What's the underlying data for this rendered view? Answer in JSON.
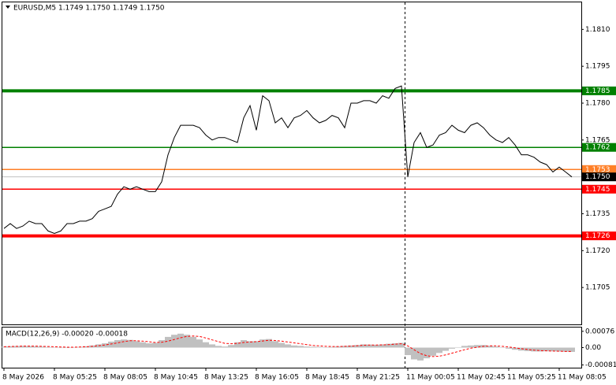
{
  "chart_data": [
    {
      "type": "line",
      "title": "EURUSD,M5  1.1749 1.1750 1.1749 1.1750",
      "categories": [
        "8 May 2026",
        null,
        null,
        null,
        null,
        null,
        null,
        null,
        "8 May 05:25",
        null,
        null,
        null,
        null,
        null,
        null,
        null,
        "8 May 08:05",
        null,
        null,
        null,
        null,
        null,
        null,
        null,
        "8 May 10:45",
        null,
        null,
        null,
        null,
        null,
        null,
        null,
        "8 May 13:25",
        null,
        null,
        null,
        null,
        null,
        null,
        null,
        "8 May 16:05",
        null,
        null,
        null,
        null,
        null,
        null,
        null,
        "8 May 18:45",
        null,
        null,
        null,
        null,
        null,
        null,
        null,
        "8 May 21:25",
        null,
        null,
        null,
        null,
        null,
        null,
        null,
        "11 May 00:05",
        null,
        null,
        null,
        null,
        null,
        null,
        null,
        "11 May 02:45",
        null,
        null,
        null,
        null,
        null,
        null,
        null,
        "11 May 05:25",
        null,
        null,
        null,
        null,
        null,
        null,
        null,
        "11 May 08:05",
        null,
        null
      ],
      "values": [
        1.1729,
        1.1731,
        1.1729,
        1.173,
        1.1732,
        1.1731,
        1.1731,
        1.1728,
        1.1727,
        1.1728,
        1.1731,
        1.1731,
        1.1732,
        1.1732,
        1.1733,
        1.1736,
        1.1737,
        1.1738,
        1.1743,
        1.1746,
        1.1745,
        1.1746,
        1.1745,
        1.1744,
        1.1744,
        1.1748,
        1.1759,
        1.1766,
        1.1771,
        1.1771,
        1.1771,
        1.177,
        1.1767,
        1.1765,
        1.1766,
        1.1766,
        1.1765,
        1.1764,
        1.1774,
        1.1779,
        1.1769,
        1.1783,
        1.1781,
        1.1772,
        1.1774,
        1.177,
        1.1774,
        1.1775,
        1.1777,
        1.1774,
        1.1772,
        1.1773,
        1.1775,
        1.1774,
        1.177,
        1.178,
        1.178,
        1.1781,
        1.1781,
        1.178,
        1.1783,
        1.1782,
        1.1786,
        1.1787,
        1.175,
        1.1764,
        1.1768,
        1.1762,
        1.1763,
        1.1767,
        1.1768,
        1.1771,
        1.1769,
        1.1768,
        1.1771,
        1.1772,
        1.177,
        1.1767,
        1.1765,
        1.1764,
        1.1766,
        1.1763,
        1.1759,
        1.1759,
        1.1758,
        1.1756,
        1.1755,
        1.1752,
        1.1754,
        1.1752,
        1.175
      ],
      "color": "#000000",
      "ylim": [
        1.169,
        1.1821
      ],
      "yticks": [
        {
          "value": 1.181,
          "label": "1.1810"
        },
        1.1795,
        {
          "value": 1.178,
          "label": "1.1780"
        },
        1.1765,
        1.1735,
        {
          "value": 1.172,
          "label": "1.1720"
        },
        1.1705
      ],
      "levels": [
        {
          "value": 1.1785,
          "color": "#008000",
          "style": "thick"
        },
        {
          "value": 1.1762,
          "color": "#008000",
          "style": "thin"
        },
        {
          "value": 1.1753,
          "color": "#ff7f27",
          "style": "thin"
        },
        {
          "value": 1.1745,
          "color": "#ff0000",
          "style": "thin"
        },
        {
          "value": 1.1726,
          "color": "#ff0000",
          "style": "thick"
        }
      ],
      "last": {
        "value": 1.175,
        "label": "1.1750"
      }
    },
    {
      "type": "bar",
      "title": "MACD(12,26,9) -0.00020 -0.00018",
      "ylim": [
        -0.0009,
        0.0009
      ],
      "yticks": [
        0.00076,
        {
          "value": 0,
          "label": "0.00"
        },
        -0.00081
      ],
      "series": [
        {
          "color": "#c0c0c0",
          "style": "histogram",
          "values": [
            5e-05,
            6e-05,
            7e-05,
            8e-05,
            7e-05,
            6e-05,
            5e-05,
            3e-05,
            0,
            -2e-05,
            -1e-05,
            1e-05,
            3e-05,
            6e-05,
            0.0001,
            0.00015,
            0.0002,
            0.00028,
            0.00035,
            0.00038,
            0.00036,
            0.0003,
            0.00025,
            0.0002,
            0.00022,
            0.00035,
            0.0005,
            0.0006,
            0.00065,
            0.0006,
            0.0005,
            0.00038,
            0.00025,
            0.00015,
            8e-05,
            5e-05,
            0.00012,
            0.00025,
            0.00035,
            0.0003,
            0.0003,
            0.00038,
            0.0004,
            0.0003,
            0.00022,
            0.00015,
            0.0001,
            8e-05,
            5e-05,
            4e-05,
            3e-05,
            2e-05,
            3e-05,
            5e-05,
            8e-05,
            0.0001,
            0.00012,
            0.00015,
            0.00014,
            0.00013,
            0.00015,
            0.00018,
            0.0002,
            0.00022,
            -0.00035,
            -0.00055,
            -0.0006,
            -0.0005,
            -0.00038,
            -0.00025,
            -0.00015,
            -5e-05,
            2e-05,
            8e-05,
            0.0001,
            0.00012,
            0.00012,
            8e-05,
            5e-05,
            0,
            -5e-05,
            -0.0001,
            -0.00014,
            -0.00016,
            -0.00018,
            -0.00018,
            -0.00017,
            -0.00017,
            -0.00018,
            -0.00019,
            -0.0002
          ]
        },
        {
          "color": "#ff0000",
          "style": "dashed",
          "values": [
            4e-05,
            5e-05,
            6e-05,
            7e-05,
            7e-05,
            7e-05,
            6e-05,
            5e-05,
            4e-05,
            3e-05,
            2e-05,
            2e-05,
            3e-05,
            4e-05,
            6e-05,
            9e-05,
            0.00012,
            0.00017,
            0.00022,
            0.00028,
            0.00032,
            0.00032,
            0.0003,
            0.00027,
            0.00024,
            0.00025,
            0.0003,
            0.00038,
            0.00046,
            0.00052,
            0.00054,
            0.00052,
            0.00045,
            0.00036,
            0.00028,
            0.0002,
            0.00018,
            0.0002,
            0.00024,
            0.00026,
            0.00028,
            0.00031,
            0.00034,
            0.00033,
            0.0003,
            0.00026,
            0.00022,
            0.00018,
            0.00014,
            0.0001,
            8e-05,
            6e-05,
            5e-05,
            5e-05,
            6e-05,
            7e-05,
            9e-05,
            0.00011,
            0.00012,
            0.00012,
            0.00013,
            0.00014,
            0.00016,
            0.00018,
            8e-05,
            -0.0001,
            -0.00028,
            -0.00038,
            -0.00042,
            -0.0004,
            -0.00034,
            -0.00026,
            -0.00018,
            -0.0001,
            -3e-05,
            2e-05,
            6e-05,
            8e-05,
            8e-05,
            6e-05,
            3e-05,
            -1e-05,
            -5e-05,
            -9e-05,
            -0.00012,
            -0.00014,
            -0.00015,
            -0.00016,
            -0.00017,
            -0.00018,
            -0.00018
          ]
        }
      ]
    }
  ]
}
